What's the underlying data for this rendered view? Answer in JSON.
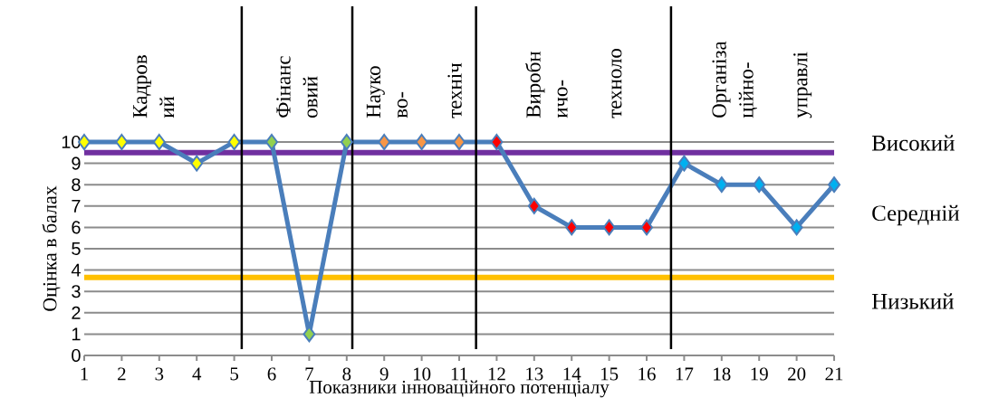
{
  "chart_data": {
    "type": "line",
    "xlabel": "Показники інноваційного потенціалу",
    "ylabel": "Оцінка в балах",
    "x": [
      1,
      2,
      3,
      4,
      5,
      6,
      7,
      8,
      9,
      10,
      11,
      12,
      13,
      14,
      15,
      16,
      17,
      18,
      19,
      20,
      21
    ],
    "series": [
      {
        "color": "#4a7ebb",
        "values": [
          10,
          10,
          10,
          9,
          10,
          10,
          1,
          10,
          10,
          10,
          10,
          10,
          7,
          6,
          6,
          6,
          9,
          8,
          8,
          6,
          8
        ],
        "colors": [
          "#ffff00",
          "#ffff00",
          "#ffff00",
          "#ffff00",
          "#ffff00",
          "#92d050",
          "#92d050",
          "#92d050",
          "#f79646",
          "#f79646",
          "#f79646",
          "#ff0000",
          "#ff0000",
          "#ff0000",
          "#ff0000",
          "#ff0000",
          "#00b0f0",
          "#00b0f0",
          "#00b0f0",
          "#00b0f0",
          "#00b0f0"
        ]
      }
    ],
    "marker": "diamond",
    "line_style": "solid",
    "grid": "y",
    "xlim": [
      1,
      21
    ],
    "xticks": [
      1,
      2,
      3,
      4,
      5,
      6,
      7,
      8,
      9,
      10,
      11,
      12,
      13,
      14,
      15,
      16,
      17,
      18,
      19,
      20,
      21
    ],
    "ylim": [
      0,
      10
    ],
    "yticks": [
      0,
      1,
      2,
      3,
      4,
      5,
      6,
      7,
      8,
      9,
      10
    ],
    "ref_lines": [
      {
        "axis": "y",
        "value": 9.5,
        "color": "#7030a0"
      },
      {
        "axis": "y",
        "value": 3.65,
        "color": "#ffc000"
      },
      {
        "axis": "x",
        "value": 5.2,
        "color": "#000000"
      },
      {
        "axis": "x",
        "value": 8.15,
        "color": "#000000"
      },
      {
        "axis": "x",
        "value": 11.45,
        "color": "#000000"
      },
      {
        "axis": "x",
        "value": 16.65,
        "color": "#000000"
      }
    ],
    "annotations": [
      "Кадров ий",
      "Фінанс овий",
      "Науко во- техніч",
      "Виробн ичо- техноло",
      "Організа ційно- управлі",
      "Високий",
      "Середній",
      "Низький"
    ]
  }
}
